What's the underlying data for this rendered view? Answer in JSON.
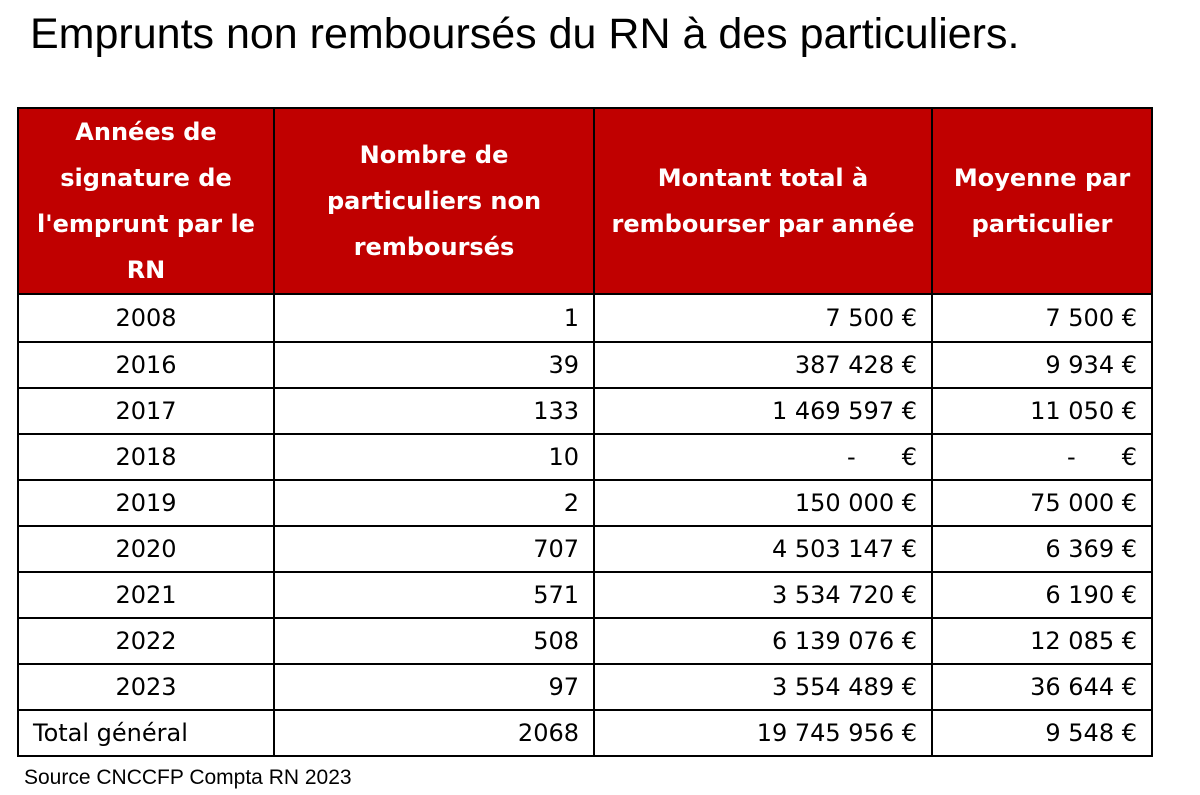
{
  "chart_data": {
    "type": "table",
    "title": "Emprunts non remboursés du RN à des particuliers.",
    "columns": [
      "Années de signature de l'emprunt par le RN",
      "Nombre de particuliers non remboursés",
      "Montant total à rembourser par année",
      "Moyenne par particulier"
    ],
    "rows": [
      [
        "2008",
        "1",
        "7 500 €",
        "7 500 €"
      ],
      [
        "2016",
        "39",
        "387 428 €",
        "9 934 €"
      ],
      [
        "2017",
        "133",
        "1 469 597 €",
        "11 050 €"
      ],
      [
        "2018",
        "10",
        "-",
        "-"
      ],
      [
        "2019",
        "2",
        "150 000 €",
        "75 000 €"
      ],
      [
        "2020",
        "707",
        "4 503 147 €",
        "6 369 €"
      ],
      [
        "2021",
        "571",
        "3 534 720 €",
        "6 190 €"
      ],
      [
        "2022",
        "508",
        "6 139 076 €",
        "12 085 €"
      ],
      [
        "2023",
        "97",
        "3 554 489 €",
        "36 644 €"
      ]
    ],
    "total_row": [
      "Total général",
      "2068",
      "19 745 956 €",
      "9 548 €"
    ],
    "euro_symbol": "€",
    "source": "Source CNCCFP Compta RN 2023"
  },
  "colors": {
    "header_background": "#c00000",
    "header_text": "#ffffff",
    "border": "#000000"
  }
}
